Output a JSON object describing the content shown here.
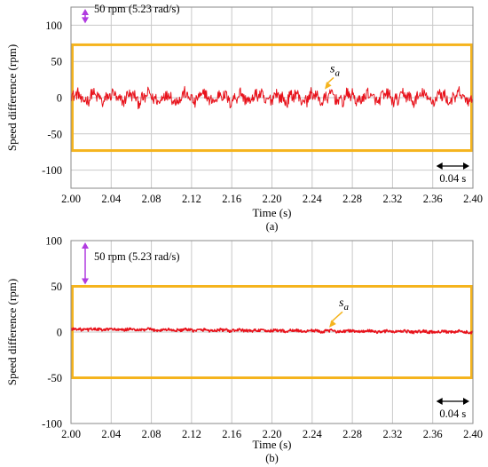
{
  "chart_data": [
    {
      "type": "line",
      "caption": "(a)",
      "xlabel": "Time (s)",
      "ylabel": "Speed difference (rpm)",
      "xlim": [
        2.0,
        2.4
      ],
      "ylim": [
        -125,
        125
      ],
      "xticks": [
        "2.00",
        "2.04",
        "2.08",
        "2.12",
        "2.16",
        "2.20",
        "2.24",
        "2.28",
        "2.32",
        "2.36",
        "2.40"
      ],
      "yticks": [
        "100",
        "50",
        "0",
        "-50",
        "-100"
      ],
      "grid": true,
      "series": [
        {
          "name": "s_a",
          "color": "#e8121b",
          "noise_amplitude": 8,
          "ripple_amplitude": 5,
          "offset": 0
        }
      ],
      "band": {
        "ymin": -73,
        "ymax": 73,
        "color": "#f5b41e"
      },
      "annotation_range": "50 rpm (5.23 rad/s)",
      "annotation_range_ylim": [
        100,
        125
      ],
      "scale_label": "0.04 s",
      "scale_xlim": [
        2.36,
        2.4
      ],
      "series_label": "s",
      "series_label_sub": "a"
    },
    {
      "type": "line",
      "caption": "(b)",
      "xlabel": "Time (s)",
      "ylabel": "Speed difference (rpm)",
      "xlim": [
        2.0,
        2.4
      ],
      "ylim": [
        -100,
        100
      ],
      "xticks": [
        "2.00",
        "2.04",
        "2.08",
        "2.12",
        "2.16",
        "2.20",
        "2.24",
        "2.28",
        "2.32",
        "2.36",
        "2.40"
      ],
      "yticks": [
        "100",
        "50",
        "0",
        "-50",
        "-100"
      ],
      "grid": true,
      "series": [
        {
          "name": "s_a",
          "color": "#e8121b",
          "noise_amplitude": 1.5,
          "ripple_amplitude": 0.5,
          "offset_start": 3,
          "offset_end": 0
        }
      ],
      "band": {
        "ymin": -50,
        "ymax": 50,
        "color": "#f5b41e"
      },
      "annotation_range": "50 rpm (5.23 rad/s)",
      "annotation_range_ylim": [
        50,
        100
      ],
      "scale_label": "0.04 s",
      "scale_xlim": [
        2.36,
        2.4
      ],
      "series_label": "s",
      "series_label_sub": "a"
    }
  ]
}
